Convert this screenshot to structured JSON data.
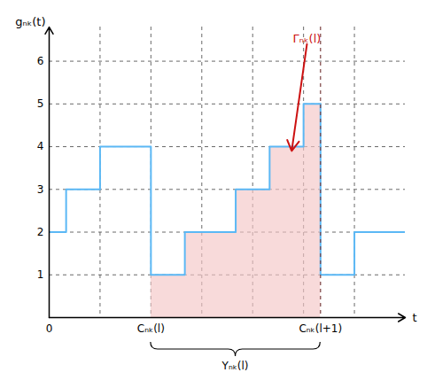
{
  "chart_data": {
    "type": "line",
    "xlabel": "t",
    "ylabel": "gₙₖ(t)",
    "xlim": [
      0,
      10.5
    ],
    "ylim": [
      0,
      6.8
    ],
    "xticks": [
      0
    ],
    "yticks": [
      1,
      2,
      3,
      4,
      5,
      6
    ],
    "grid": true,
    "vlines": [
      1.5,
      3.0,
      4.5,
      6.0,
      7.5,
      9.0
    ],
    "dashed_vline": {
      "x": 8.0,
      "color": "#7a4040"
    },
    "series": [
      {
        "type": "area",
        "color": "#f5c6c6",
        "x": [
          3.0,
          4.0,
          4.0,
          5.5,
          5.5,
          6.5,
          6.5,
          7.5,
          7.5,
          8.0
        ],
        "values": [
          1,
          1,
          2,
          2,
          3,
          3,
          4,
          4,
          5,
          5
        ]
      },
      {
        "type": "line",
        "color": "#5bb8f5",
        "x": [
          0.0,
          0.5,
          0.5,
          1.5,
          1.5,
          3.0,
          3.0,
          4.0,
          4.0,
          5.5,
          5.5,
          6.5,
          6.5,
          7.5,
          7.5,
          8.0,
          8.0,
          9.0,
          9.0,
          10.5
        ],
        "values": [
          2,
          2,
          3,
          3,
          4,
          4,
          1,
          1,
          2,
          2,
          3,
          3,
          4,
          4,
          5,
          5,
          1,
          1,
          2,
          2
        ]
      }
    ],
    "annotations": [
      {
        "text": "Cₙₖ(l)",
        "x": 3.0
      },
      {
        "text": "Cₙₖ(l+1)",
        "x": 8.0
      },
      {
        "type": "brace",
        "text": "Yₙₖ(l)",
        "x0": 3.0,
        "x1": 8.0
      },
      {
        "text": "Γₙₖ(l)",
        "x": 7.6,
        "y": 6.4,
        "arrow_x": 7.15,
        "arrow_y": 3.9,
        "color": "#cc1111"
      }
    ]
  }
}
